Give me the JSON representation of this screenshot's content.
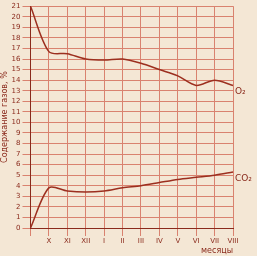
{
  "chart_data": {
    "type": "line",
    "x_label": "месяцы",
    "y_label": "Содержание газов, %",
    "categories": [
      null,
      "X",
      "XI",
      "XII",
      "I",
      "II",
      "III",
      "IV",
      "V",
      "VI",
      "VII",
      "VIII"
    ],
    "series": [
      {
        "name": "O₂",
        "color": "#9c2f1f",
        "values": [
          21,
          16.7,
          16.5,
          16,
          15.9,
          16,
          15.6,
          15,
          14.4,
          13.5,
          14,
          13.5
        ]
      },
      {
        "name": "CO₂",
        "color": "#9c2f1f",
        "values": [
          0,
          3.8,
          3.5,
          3.4,
          3.5,
          3.8,
          4,
          4.3,
          4.6,
          4.8,
          5,
          5.3
        ]
      }
    ],
    "ylim": [
      0,
      21
    ],
    "yticks": [
      0,
      1,
      2,
      3,
      4,
      5,
      6,
      7,
      8,
      9,
      10,
      11,
      12,
      13,
      14,
      15,
      16,
      17,
      18,
      19,
      20,
      21
    ],
    "grid": true
  }
}
